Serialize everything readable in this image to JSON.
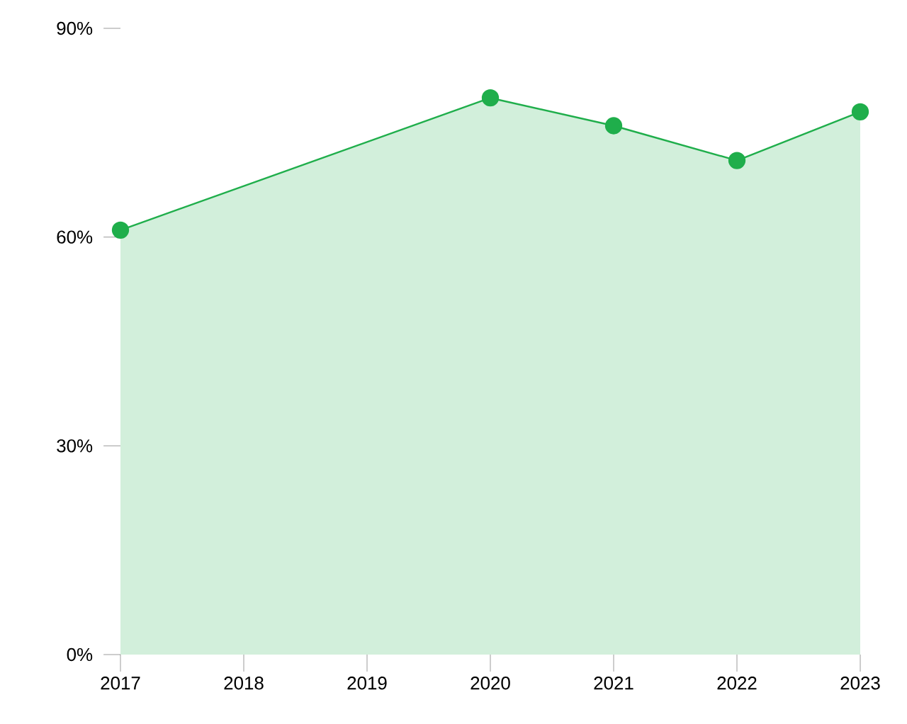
{
  "chart_data": {
    "type": "area",
    "x": [
      2017,
      2020,
      2021,
      2022,
      2023
    ],
    "values": [
      61,
      80,
      76,
      71,
      78
    ],
    "color": "#1fae4b",
    "marker": "circle",
    "xlim": [
      2017,
      2023
    ],
    "xticks": [
      2017,
      2018,
      2019,
      2020,
      2021,
      2022,
      2023
    ],
    "ylim": [
      0,
      90
    ],
    "yticks": [
      {
        "value": 0,
        "label": "0%"
      },
      {
        "value": 30,
        "label": "30%"
      },
      {
        "value": 60,
        "label": "60%"
      },
      {
        "value": 90,
        "label": "90%"
      }
    ],
    "grid": false
  }
}
